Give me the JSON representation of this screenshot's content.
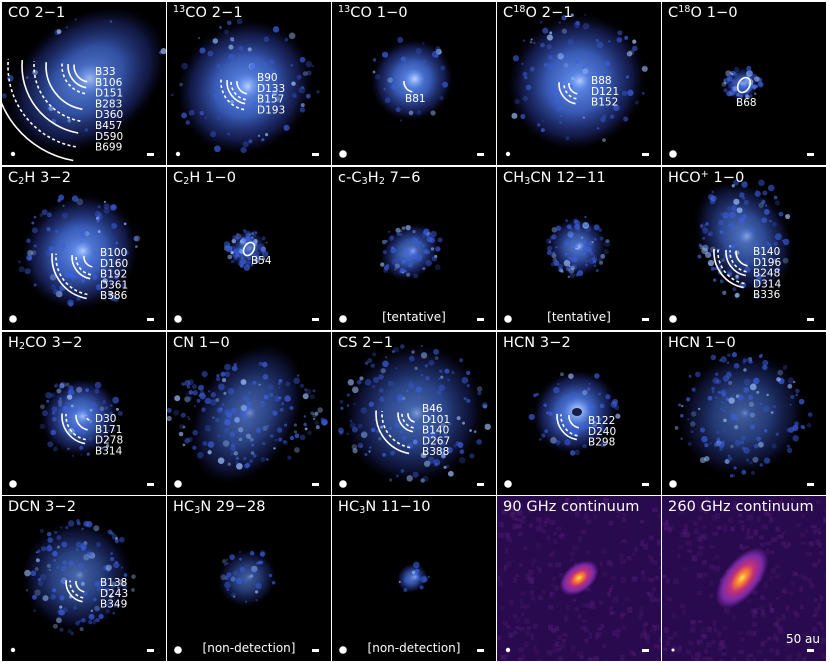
{
  "figure": {
    "panels": [
      {
        "id": "co21",
        "title_parts": [
          {
            "t": "CO 2",
            "s": "n"
          },
          {
            "t": "−",
            "s": "n"
          },
          {
            "t": "1",
            "s": "n"
          }
        ],
        "features": [
          "B33",
          "B106",
          "D151",
          "B283",
          "D360",
          "B457",
          "D590",
          "B699"
        ],
        "note": ""
      },
      {
        "id": "13co21",
        "title_parts": [
          {
            "t": "13",
            "s": "sup"
          },
          {
            "t": "CO 2",
            "s": "n"
          },
          {
            "t": "−",
            "s": "n"
          },
          {
            "t": "1",
            "s": "n"
          }
        ],
        "features": [
          "B90",
          "D133",
          "B157",
          "D193"
        ],
        "note": ""
      },
      {
        "id": "13co10",
        "title_parts": [
          {
            "t": "13",
            "s": "sup"
          },
          {
            "t": "CO 1",
            "s": "n"
          },
          {
            "t": "−",
            "s": "n"
          },
          {
            "t": "0",
            "s": "n"
          }
        ],
        "features": [
          "B81"
        ],
        "note": ""
      },
      {
        "id": "c18o21",
        "title_parts": [
          {
            "t": "C",
            "s": "n"
          },
          {
            "t": "18",
            "s": "sup"
          },
          {
            "t": "O 2",
            "s": "n"
          },
          {
            "t": "−",
            "s": "n"
          },
          {
            "t": "1",
            "s": "n"
          }
        ],
        "features": [
          "B88",
          "D121",
          "B152"
        ],
        "note": ""
      },
      {
        "id": "c18o10",
        "title_parts": [
          {
            "t": "C",
            "s": "n"
          },
          {
            "t": "18",
            "s": "sup"
          },
          {
            "t": "O 1",
            "s": "n"
          },
          {
            "t": "−",
            "s": "n"
          },
          {
            "t": "0",
            "s": "n"
          }
        ],
        "features": [
          "B68"
        ],
        "note": ""
      },
      {
        "id": "c2h32",
        "title_parts": [
          {
            "t": "C",
            "s": "n"
          },
          {
            "t": "2",
            "s": "sub"
          },
          {
            "t": "H 3",
            "s": "n"
          },
          {
            "t": "−",
            "s": "n"
          },
          {
            "t": "2",
            "s": "n"
          }
        ],
        "features": [
          "B100",
          "D160",
          "B192",
          "D361",
          "B386"
        ],
        "note": ""
      },
      {
        "id": "c2h10",
        "title_parts": [
          {
            "t": "C",
            "s": "n"
          },
          {
            "t": "2",
            "s": "sub"
          },
          {
            "t": "H 1",
            "s": "n"
          },
          {
            "t": "−",
            "s": "n"
          },
          {
            "t": "0",
            "s": "n"
          }
        ],
        "features": [
          "B54"
        ],
        "note": ""
      },
      {
        "id": "cc3h2",
        "title_parts": [
          {
            "t": "c-C",
            "s": "n"
          },
          {
            "t": "3",
            "s": "sub"
          },
          {
            "t": "H",
            "s": "n"
          },
          {
            "t": "2",
            "s": "sub"
          },
          {
            "t": " 7",
            "s": "n"
          },
          {
            "t": "−",
            "s": "n"
          },
          {
            "t": "6",
            "s": "n"
          }
        ],
        "features": [],
        "note": "[tentative]"
      },
      {
        "id": "ch3cn",
        "title_parts": [
          {
            "t": "CH",
            "s": "n"
          },
          {
            "t": "3",
            "s": "sub"
          },
          {
            "t": "CN 12",
            "s": "n"
          },
          {
            "t": "−",
            "s": "n"
          },
          {
            "t": "11",
            "s": "n"
          }
        ],
        "features": [],
        "note": "[tentative]"
      },
      {
        "id": "hcop10",
        "title_parts": [
          {
            "t": "HCO",
            "s": "n"
          },
          {
            "t": "+",
            "s": "sup"
          },
          {
            "t": " 1",
            "s": "n"
          },
          {
            "t": "−",
            "s": "n"
          },
          {
            "t": "0",
            "s": "n"
          }
        ],
        "features": [
          "B140",
          "D196",
          "B248",
          "D314",
          "B336"
        ],
        "note": ""
      },
      {
        "id": "h2co32",
        "title_parts": [
          {
            "t": "H",
            "s": "n"
          },
          {
            "t": "2",
            "s": "sub"
          },
          {
            "t": "CO 3",
            "s": "n"
          },
          {
            "t": "−",
            "s": "n"
          },
          {
            "t": "2",
            "s": "n"
          }
        ],
        "features": [
          "D30",
          "B171",
          "D278",
          "B314"
        ],
        "note": ""
      },
      {
        "id": "cn10",
        "title_parts": [
          {
            "t": "CN 1",
            "s": "n"
          },
          {
            "t": "−",
            "s": "n"
          },
          {
            "t": "0",
            "s": "n"
          }
        ],
        "features": [],
        "note": ""
      },
      {
        "id": "cs21",
        "title_parts": [
          {
            "t": "CS 2",
            "s": "n"
          },
          {
            "t": "−",
            "s": "n"
          },
          {
            "t": "1",
            "s": "n"
          }
        ],
        "features": [
          "B46",
          "D101",
          "B140",
          "D267",
          "B388"
        ],
        "note": ""
      },
      {
        "id": "hcn32",
        "title_parts": [
          {
            "t": "HCN 3",
            "s": "n"
          },
          {
            "t": "−",
            "s": "n"
          },
          {
            "t": "2",
            "s": "n"
          }
        ],
        "features": [
          "B122",
          "D240",
          "B298"
        ],
        "note": ""
      },
      {
        "id": "hcn10",
        "title_parts": [
          {
            "t": "HCN 1",
            "s": "n"
          },
          {
            "t": "−",
            "s": "n"
          },
          {
            "t": "0",
            "s": "n"
          }
        ],
        "features": [],
        "note": ""
      },
      {
        "id": "dcn32",
        "title_parts": [
          {
            "t": "DCN 3",
            "s": "n"
          },
          {
            "t": "−",
            "s": "n"
          },
          {
            "t": "2",
            "s": "n"
          }
        ],
        "features": [
          "B138",
          "D243",
          "B349"
        ],
        "note": ""
      },
      {
        "id": "hc3n2928",
        "title_parts": [
          {
            "t": "HC",
            "s": "n"
          },
          {
            "t": "3",
            "s": "sub"
          },
          {
            "t": "N 29",
            "s": "n"
          },
          {
            "t": "−",
            "s": "n"
          },
          {
            "t": "28",
            "s": "n"
          }
        ],
        "features": [],
        "note": "[non-detection]"
      },
      {
        "id": "hc3n1110",
        "title_parts": [
          {
            "t": "HC",
            "s": "n"
          },
          {
            "t": "3",
            "s": "sub"
          },
          {
            "t": "N 11",
            "s": "n"
          },
          {
            "t": "−",
            "s": "n"
          },
          {
            "t": "10",
            "s": "n"
          }
        ],
        "features": [],
        "note": "[non-detection]"
      },
      {
        "id": "cont90",
        "title_parts": [
          {
            "t": "90 GHz continuum",
            "s": "n"
          }
        ],
        "features": [],
        "note": ""
      },
      {
        "id": "cont260",
        "title_parts": [
          {
            "t": "260 GHz continuum",
            "s": "n"
          }
        ],
        "features": [],
        "note": "",
        "scale_label": "50 au"
      }
    ],
    "colors": {
      "background": "#000000",
      "line_emission": "#4a78f0",
      "line_core": "#dde8ff",
      "continuum_bg": "#2a0a4e",
      "continuum_mid": "#7a2aa8",
      "continuum_core": "#ffe46a",
      "annotation": "#ffffff"
    }
  }
}
